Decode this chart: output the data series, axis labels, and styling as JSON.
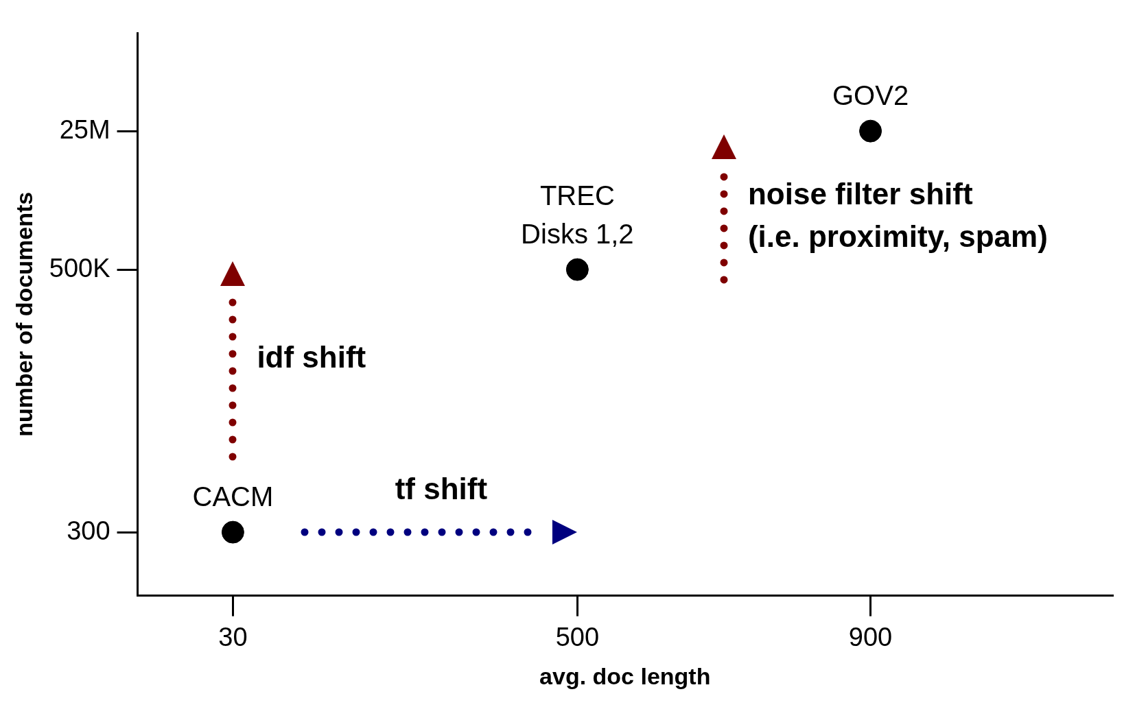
{
  "chart_data": {
    "type": "scatter",
    "xlabel": "avg. doc length",
    "ylabel": "number of documents",
    "x": [
      30,
      500,
      900
    ],
    "values": [
      300,
      500000,
      25000000
    ],
    "color": "#000000",
    "marker": "circle",
    "xlim": [
      -100,
      1230
    ],
    "xticks": [
      30,
      500,
      900
    ],
    "log": "y",
    "ylim": [
      50,
      400000000
    ],
    "yticks": [
      300,
      {
        "value": 500000,
        "label": "500K"
      },
      {
        "value": 25000000,
        "label": "25M"
      }
    ],
    "grid": false,
    "legend": false,
    "annotations": [
      {
        "text": "CACM",
        "x": 30,
        "y": 300
      },
      {
        "text": "TREC\nDisks 1,2",
        "x": 500,
        "y": 500000
      },
      {
        "text": "GOV2",
        "x": 900,
        "y": 25000000
      },
      "idf shift",
      "tf shift",
      "noise filter shift\n(i.e. proximity, spam)"
    ]
  }
}
